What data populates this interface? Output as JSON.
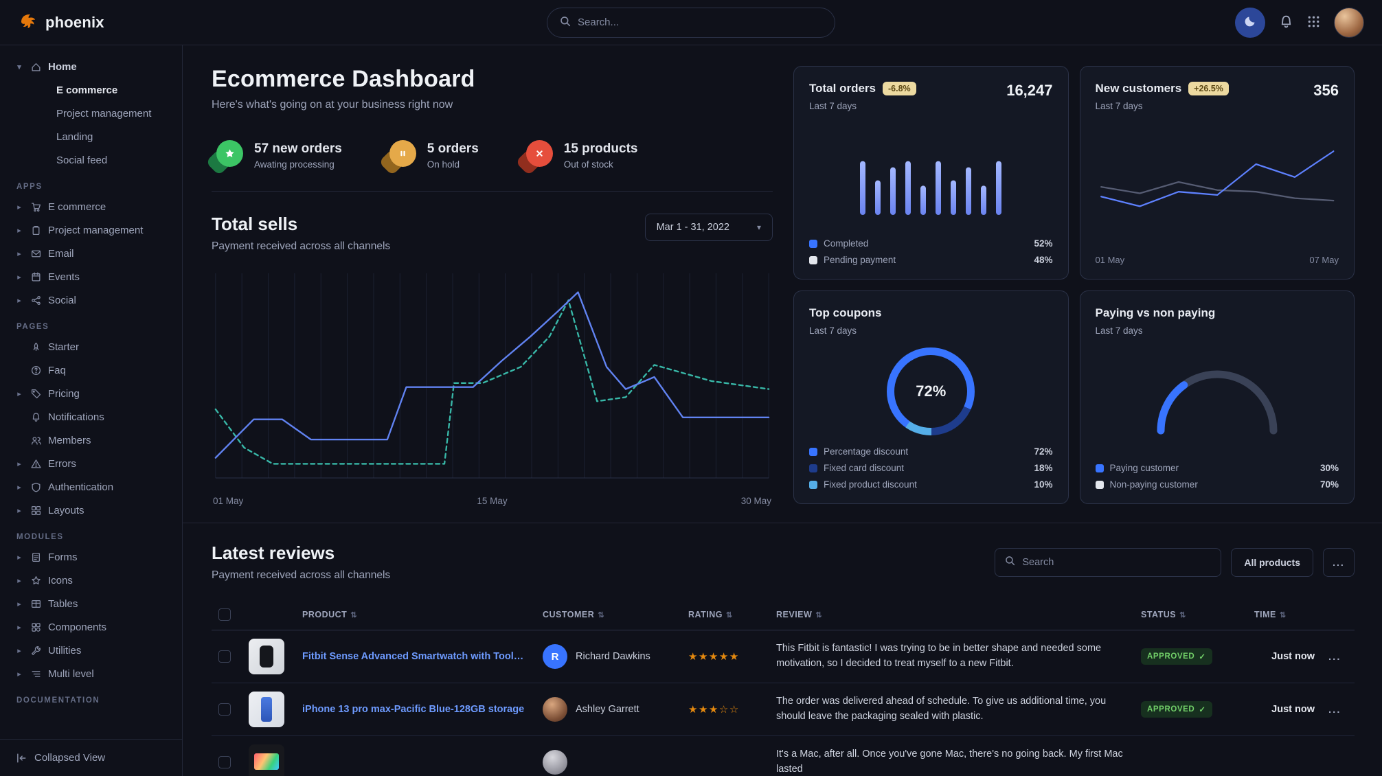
{
  "brand": {
    "name": "phoenix"
  },
  "topbar": {
    "search_placeholder": "Search..."
  },
  "header": {
    "title": "Ecommerce Dashboard",
    "subtitle": "Here's what's going on at your business right now"
  },
  "stats": [
    {
      "value": "57 new orders",
      "caption": "Awating processing",
      "icon": "stat-star",
      "color": "#3cc565",
      "dark": "#1d7f45"
    },
    {
      "value": "5 orders",
      "caption": "On hold",
      "icon": "stat-pause",
      "color": "#e5a949",
      "dark": "#9a6a1f"
    },
    {
      "value": "15 products",
      "caption": "Out of stock",
      "icon": "stat-x",
      "color": "#e64e3c",
      "dark": "#99301f"
    }
  ],
  "total_sells": {
    "title": "Total sells",
    "subtitle": "Payment received across all channels",
    "date_range": "Mar 1 - 31, 2022"
  },
  "cards": {
    "total_orders": {
      "title": "Total orders",
      "badge": "-6.8%",
      "period": "Last 7 days",
      "value": "16,247"
    },
    "new_customers": {
      "title": "New customers",
      "badge": "+26.5%",
      "period": "Last 7 days",
      "value": "356"
    },
    "top_coupons": {
      "title": "Top coupons",
      "period": "Last 7 days"
    },
    "paying": {
      "title": "Paying vs non paying",
      "period": "Last 7 days"
    }
  },
  "sidebar": {
    "collapsed_label": "Collapsed View",
    "tree": [
      {
        "label": "Home",
        "icon": "house",
        "expanded": true,
        "children": [
          "E commerce",
          "Project management",
          "Landing",
          "Social feed"
        ]
      }
    ],
    "sections": [
      {
        "title": "APPS",
        "items": [
          {
            "label": "E commerce",
            "icon": "cart",
            "chevron": true
          },
          {
            "label": "Project management",
            "icon": "clipboard",
            "chevron": true
          },
          {
            "label": "Email",
            "icon": "mail",
            "chevron": true
          },
          {
            "label": "Events",
            "icon": "calendar",
            "chevron": true
          },
          {
            "label": "Social",
            "icon": "share",
            "chevron": true
          }
        ]
      },
      {
        "title": "PAGES",
        "items": [
          {
            "label": "Starter",
            "icon": "rocket",
            "chevron": false
          },
          {
            "label": "Faq",
            "icon": "question",
            "chevron": false
          },
          {
            "label": "Pricing",
            "icon": "tag",
            "chevron": true
          },
          {
            "label": "Notifications",
            "icon": "bell",
            "chevron": false
          },
          {
            "label": "Members",
            "icon": "users",
            "chevron": false
          },
          {
            "label": "Errors",
            "icon": "warning",
            "chevron": true
          },
          {
            "label": "Authentication",
            "icon": "shield",
            "chevron": true
          },
          {
            "label": "Layouts",
            "icon": "grid",
            "chevron": true
          }
        ]
      },
      {
        "title": "MODULES",
        "items": [
          {
            "label": "Forms",
            "icon": "form",
            "chevron": true
          },
          {
            "label": "Icons",
            "icon": "star",
            "chevron": true
          },
          {
            "label": "Tables",
            "icon": "table",
            "chevron": true
          },
          {
            "label": "Components",
            "icon": "puzzle",
            "chevron": true
          },
          {
            "label": "Utilities",
            "icon": "wrench",
            "chevron": true
          },
          {
            "label": "Multi level",
            "icon": "layers",
            "chevron": true
          }
        ]
      },
      {
        "title": "DOCUMENTATION",
        "items": []
      }
    ]
  },
  "reviews": {
    "title": "Latest reviews",
    "subtitle": "Payment received across all channels",
    "search_placeholder": "Search",
    "filter_label": "All products",
    "more_label": "...",
    "row_menu": "...",
    "columns": [
      {
        "label": "PRODUCT",
        "sort": true
      },
      {
        "label": "CUSTOMER",
        "sort": true
      },
      {
        "label": "RATING",
        "sort": true
      },
      {
        "label": "REVIEW",
        "sort": true
      },
      {
        "label": "STATUS",
        "sort": true
      },
      {
        "label": "TIME",
        "sort": true
      }
    ],
    "rows": [
      {
        "thumb": "watch",
        "product": "Fitbit Sense Advanced Smartwatch with Tools fo...",
        "customer": "Richard Dawkins",
        "avatar": "initial",
        "avatar_initial": "R",
        "rating": 5,
        "review": "This Fitbit is fantastic! I was trying to be in better shape and needed some motivation, so I decided to treat myself to a new Fitbit.",
        "status": "APPROVED",
        "time": "Just now"
      },
      {
        "thumb": "iphone",
        "product": "iPhone 13 pro max-Pacific Blue-128GB storage",
        "customer": "Ashley Garrett",
        "avatar": "photo-1",
        "avatar_initial": "",
        "rating": 3,
        "review": "The order was delivered ahead of schedule. To give us additional time, you should leave the packaging sealed with plastic.",
        "status": "APPROVED",
        "time": "Just now"
      },
      {
        "thumb": "macbook",
        "product": "",
        "customer": "",
        "avatar": "photo-2",
        "avatar_initial": "",
        "rating": 0,
        "review": "It's a Mac, after all. Once you've gone Mac, there's no going back. My first Mac lasted",
        "status": "",
        "time": ""
      }
    ]
  },
  "chart_data": [
    {
      "id": "total_sells",
      "type": "line",
      "title": "Total sells",
      "subtitle": "Payment received across all channels",
      "date_range": "Mar 1 - 31, 2022",
      "xticks": [
        "01 May",
        "15 May",
        "30 May"
      ],
      "ylim": [
        0,
        100
      ],
      "grid": "vertical",
      "series": [
        {
          "name": "current",
          "style": "solid",
          "color": "#6183f2",
          "x": [
            1,
            3,
            4.5,
            6,
            8,
            10,
            11,
            13,
            14.5,
            16,
            17.5,
            19,
            20,
            21.5,
            22.5,
            24,
            25.5,
            27,
            30
          ],
          "y": [
            10,
            29,
            29,
            19,
            19,
            19,
            45,
            45,
            45,
            58,
            70,
            83,
            92,
            55,
            44,
            50,
            30,
            30,
            30
          ]
        },
        {
          "name": "previous",
          "style": "dashed",
          "color": "#38b8a8",
          "x": [
            1,
            2.5,
            4,
            6,
            8,
            10,
            12,
            13,
            13.5,
            15,
            17,
            18.5,
            19.5,
            21,
            22.5,
            24,
            25.5,
            27,
            30
          ],
          "y": [
            34,
            15,
            7,
            7,
            7,
            7,
            7,
            7,
            47,
            47,
            55,
            70,
            88,
            38,
            40,
            56,
            52,
            48,
            44
          ]
        }
      ]
    },
    {
      "id": "total_orders",
      "type": "bar",
      "title": "Total orders",
      "total": "16,247",
      "change": "-6.8%",
      "period": "Last 7 days",
      "values": [
        70,
        45,
        62,
        70,
        38,
        70,
        45,
        62,
        38,
        70
      ],
      "bar_color": "#8aa3ff",
      "legend": [
        {
          "label": "Completed",
          "value": "52%",
          "color": "#3874ff"
        },
        {
          "label": "Pending payment",
          "value": "48%",
          "color": "#e3e6ed"
        }
      ]
    },
    {
      "id": "new_customers",
      "type": "line",
      "title": "New customers",
      "total": "356",
      "change": "+26.5%",
      "period": "Last 7 days",
      "xticks": [
        "01 May",
        "07 May"
      ],
      "series": [
        {
          "name": "previous",
          "style": "solid",
          "color": "#565c73",
          "y": [
            44,
            36,
            50,
            40,
            38,
            30,
            27
          ]
        },
        {
          "name": "current",
          "style": "solid",
          "color": "#5e81ff",
          "y": [
            32,
            20,
            38,
            34,
            72,
            56,
            88
          ]
        }
      ]
    },
    {
      "id": "top_coupons",
      "type": "donut",
      "title": "Top coupons",
      "period": "Last 7 days",
      "center_label": "72%",
      "slices": [
        {
          "label": "Percentage discount",
          "value": 72,
          "color": "#3874ff"
        },
        {
          "label": "Fixed card discount",
          "value": 18,
          "color": "#1e3c8c"
        },
        {
          "label": "Fixed product discount",
          "value": 10,
          "color": "#55aee8"
        }
      ]
    },
    {
      "id": "paying_vs_nonpaying",
      "type": "gauge",
      "title": "Paying vs non paying",
      "period": "Last 7 days",
      "slices": [
        {
          "label": "Paying customer",
          "value": 30,
          "color": "#3874ff"
        },
        {
          "label": "Non-paying customer",
          "value": 70,
          "color": "#e3e6ed"
        }
      ]
    }
  ]
}
